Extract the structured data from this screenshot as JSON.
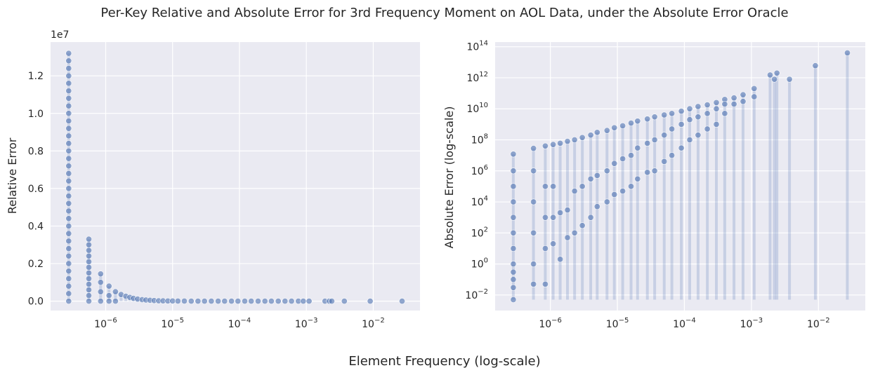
{
  "figure": {
    "suptitle": "Per-Key Relative and Absolute Error for 3rd Frequency Moment on AOL Data, under the Absolute Error Oracle",
    "shared_xlabel": "Element Frequency (log-scale)"
  },
  "colors": {
    "panel_bg": "#eaeaf2",
    "grid": "#ffffff",
    "point": "#4c72b0",
    "text": "#262626"
  },
  "chart_data": [
    {
      "type": "scatter",
      "title": "",
      "xlabel": "",
      "ylabel": "Relative Error",
      "y_offset_label": "1e7",
      "xscale": "log",
      "yscale": "linear",
      "xlim": [
        1.5e-07,
        0.05
      ],
      "ylim": [
        -500000,
        13800000
      ],
      "x_ticks": [
        1e-06,
        1e-05,
        0.0001,
        0.001,
        0.01
      ],
      "x_tick_labels": [
        {
          "base": "10",
          "exp": "−6"
        },
        {
          "base": "10",
          "exp": "−5"
        },
        {
          "base": "10",
          "exp": "−4"
        },
        {
          "base": "10",
          "exp": "−3"
        },
        {
          "base": "10",
          "exp": "−2"
        }
      ],
      "y_ticks": [
        0,
        2000000,
        4000000,
        6000000,
        8000000,
        10000000,
        12000000
      ],
      "y_tick_labels": [
        "0.0",
        "0.2",
        "0.4",
        "0.6",
        "0.8",
        "1.0",
        "1.2"
      ],
      "grid": true,
      "points": [
        [
          2.8e-07,
          13200000
        ],
        [
          2.8e-07,
          12800000
        ],
        [
          2.8e-07,
          12400000
        ],
        [
          2.8e-07,
          12000000
        ],
        [
          2.8e-07,
          11600000
        ],
        [
          2.8e-07,
          11200000
        ],
        [
          2.8e-07,
          10800000
        ],
        [
          2.8e-07,
          10400000
        ],
        [
          2.8e-07,
          10000000
        ],
        [
          2.8e-07,
          9600000
        ],
        [
          2.8e-07,
          9200000
        ],
        [
          2.8e-07,
          8800000
        ],
        [
          2.8e-07,
          8400000
        ],
        [
          2.8e-07,
          8000000
        ],
        [
          2.8e-07,
          7600000
        ],
        [
          2.8e-07,
          7200000
        ],
        [
          2.8e-07,
          6800000
        ],
        [
          2.8e-07,
          6400000
        ],
        [
          2.8e-07,
          6000000
        ],
        [
          2.8e-07,
          5600000
        ],
        [
          2.8e-07,
          5200000
        ],
        [
          2.8e-07,
          4800000
        ],
        [
          2.8e-07,
          4400000
        ],
        [
          2.8e-07,
          4000000
        ],
        [
          2.8e-07,
          3600000
        ],
        [
          2.8e-07,
          3200000
        ],
        [
          2.8e-07,
          2800000
        ],
        [
          2.8e-07,
          2400000
        ],
        [
          2.8e-07,
          2000000
        ],
        [
          2.8e-07,
          1600000
        ],
        [
          2.8e-07,
          1200000
        ],
        [
          2.8e-07,
          800000
        ],
        [
          2.8e-07,
          400000
        ],
        [
          2.8e-07,
          0
        ],
        [
          5.6e-07,
          3300000
        ],
        [
          5.6e-07,
          3000000
        ],
        [
          5.6e-07,
          2700000
        ],
        [
          5.6e-07,
          2400000
        ],
        [
          5.6e-07,
          2100000
        ],
        [
          5.6e-07,
          1800000
        ],
        [
          5.6e-07,
          1500000
        ],
        [
          5.6e-07,
          1200000
        ],
        [
          5.6e-07,
          900000
        ],
        [
          5.6e-07,
          600000
        ],
        [
          5.6e-07,
          300000
        ],
        [
          5.6e-07,
          0
        ],
        [
          8.4e-07,
          1450000
        ],
        [
          8.4e-07,
          1000000
        ],
        [
          8.4e-07,
          500000
        ],
        [
          8.4e-07,
          0
        ],
        [
          1.12e-06,
          800000
        ],
        [
          1.12e-06,
          300000
        ],
        [
          1.12e-06,
          0
        ],
        [
          1.4e-06,
          500000
        ],
        [
          1.4e-06,
          0
        ],
        [
          1.7e-06,
          350000
        ],
        [
          2e-06,
          260000
        ],
        [
          2.3e-06,
          200000
        ],
        [
          2.6e-06,
          150000
        ],
        [
          3e-06,
          110000
        ],
        [
          3.5e-06,
          80000
        ],
        [
          4e-06,
          60000
        ],
        [
          4.6e-06,
          45000
        ],
        [
          5.3e-06,
          30000
        ],
        [
          6.2e-06,
          20000
        ],
        [
          7.2e-06,
          14000
        ],
        [
          8.5e-06,
          9000
        ],
        [
          1e-05,
          6000
        ],
        [
          1.2e-05,
          4000
        ],
        [
          1.5e-05,
          2500
        ],
        [
          1.9e-05,
          1600
        ],
        [
          2.4e-05,
          1000
        ],
        [
          3e-05,
          700
        ],
        [
          3.8e-05,
          500
        ],
        [
          4.8e-05,
          300
        ],
        [
          6e-05,
          200
        ],
        [
          7.6e-05,
          150
        ],
        [
          9.5e-05,
          100
        ],
        [
          0.00012,
          80
        ],
        [
          0.00015,
          60
        ],
        [
          0.00019,
          50
        ],
        [
          0.00024,
          40
        ],
        [
          0.0003,
          30
        ],
        [
          0.00038,
          20
        ],
        [
          0.00048,
          15
        ],
        [
          0.0006,
          10
        ],
        [
          0.00076,
          8
        ],
        [
          0.0009,
          6
        ],
        [
          0.0011,
          5
        ],
        [
          0.0019,
          3
        ],
        [
          0.0022,
          2
        ],
        [
          0.0024,
          2
        ],
        [
          0.0037,
          1
        ],
        [
          0.009,
          1
        ],
        [
          0.027,
          0
        ]
      ]
    },
    {
      "type": "scatter",
      "title": "",
      "xlabel": "",
      "ylabel": "Absolute Error (log-scale)",
      "xscale": "log",
      "yscale": "log",
      "xlim": [
        1.5e-07,
        0.05
      ],
      "ylim": [
        0.001,
        200000000000000.0
      ],
      "x_ticks": [
        1e-06,
        1e-05,
        0.0001,
        0.001,
        0.01
      ],
      "x_tick_labels": [
        {
          "base": "10",
          "exp": "−6"
        },
        {
          "base": "10",
          "exp": "−5"
        },
        {
          "base": "10",
          "exp": "−4"
        },
        {
          "base": "10",
          "exp": "−3"
        },
        {
          "base": "10",
          "exp": "−2"
        }
      ],
      "y_ticks": [
        0.01,
        1,
        100,
        10000,
        1000000,
        100000000,
        10000000000,
        1000000000000,
        100000000000000
      ],
      "y_tick_labels": [
        {
          "base": "10",
          "exp": "−2"
        },
        {
          "base": "10",
          "exp": "0"
        },
        {
          "base": "10",
          "exp": "2"
        },
        {
          "base": "10",
          "exp": "4"
        },
        {
          "base": "10",
          "exp": "6"
        },
        {
          "base": "10",
          "exp": "8"
        },
        {
          "base": "10",
          "exp": "10"
        },
        {
          "base": "10",
          "exp": "12"
        },
        {
          "base": "10",
          "exp": "14"
        }
      ],
      "grid": true,
      "points": [
        [
          2.8e-07,
          12000000.0
        ],
        [
          2.8e-07,
          1000000.0
        ],
        [
          2.8e-07,
          100000.0
        ],
        [
          2.8e-07,
          10000.0
        ],
        [
          2.8e-07,
          1000.0
        ],
        [
          2.8e-07,
          100.0
        ],
        [
          2.8e-07,
          10
        ],
        [
          2.8e-07,
          1
        ],
        [
          2.8e-07,
          0.3
        ],
        [
          2.8e-07,
          0.1
        ],
        [
          2.8e-07,
          0.03
        ],
        [
          2.8e-07,
          0.005
        ],
        [
          5.6e-07,
          28000000.0
        ],
        [
          5.6e-07,
          1000000.0
        ],
        [
          5.6e-07,
          10000.0
        ],
        [
          5.6e-07,
          100.0
        ],
        [
          5.6e-07,
          1
        ],
        [
          5.6e-07,
          0.05
        ],
        [
          8.4e-07,
          40000000.0
        ],
        [
          8.4e-07,
          100000.0
        ],
        [
          8.4e-07,
          1000.0
        ],
        [
          8.4e-07,
          10
        ],
        [
          8.4e-07,
          0.05
        ],
        [
          1.1e-06,
          50000000.0
        ],
        [
          1.1e-06,
          100000.0
        ],
        [
          1.1e-06,
          1000.0
        ],
        [
          1.1e-06,
          20
        ],
        [
          1.4e-06,
          60000000.0
        ],
        [
          1.4e-06,
          2000.0
        ],
        [
          1.4e-06,
          2
        ],
        [
          1.8e-06,
          80000000.0
        ],
        [
          1.8e-06,
          3000.0
        ],
        [
          1.8e-06,
          50
        ],
        [
          2.3e-06,
          100000000.0
        ],
        [
          2.3e-06,
          50000.0
        ],
        [
          2.3e-06,
          100
        ],
        [
          3e-06,
          140000000.0
        ],
        [
          3e-06,
          100000.0
        ],
        [
          3e-06,
          300
        ],
        [
          4e-06,
          200000000.0
        ],
        [
          4e-06,
          300000.0
        ],
        [
          4e-06,
          1000.0
        ],
        [
          5e-06,
          300000000.0
        ],
        [
          5e-06,
          500000.0
        ],
        [
          5e-06,
          5000.0
        ],
        [
          7e-06,
          400000000.0
        ],
        [
          7e-06,
          1000000.0
        ],
        [
          7e-06,
          10000.0
        ],
        [
          9e-06,
          600000000.0
        ],
        [
          9e-06,
          3000000.0
        ],
        [
          9e-06,
          30000.0
        ],
        [
          1.2e-05,
          800000000.0
        ],
        [
          1.2e-05,
          6000000.0
        ],
        [
          1.2e-05,
          50000.0
        ],
        [
          1.6e-05,
          1200000000.0
        ],
        [
          1.6e-05,
          10000000.0
        ],
        [
          1.6e-05,
          100000.0
        ],
        [
          2e-05,
          1600000000.0
        ],
        [
          2e-05,
          30000000.0
        ],
        [
          2e-05,
          300000.0
        ],
        [
          2.8e-05,
          2200000000.0
        ],
        [
          2.8e-05,
          60000000.0
        ],
        [
          2.8e-05,
          800000.0
        ],
        [
          3.6e-05,
          3000000000.0
        ],
        [
          3.6e-05,
          100000000.0
        ],
        [
          3.6e-05,
          1000000.0
        ],
        [
          5e-05,
          4000000000.0
        ],
        [
          5e-05,
          200000000.0
        ],
        [
          5e-05,
          4000000.0
        ],
        [
          6.5e-05,
          5000000000.0
        ],
        [
          6.5e-05,
          500000000.0
        ],
        [
          6.5e-05,
          10000000.0
        ],
        [
          9e-05,
          7000000000.0
        ],
        [
          9e-05,
          1000000000.0
        ],
        [
          9e-05,
          30000000.0
        ],
        [
          0.00012,
          10000000000.0
        ],
        [
          0.00012,
          2000000000.0
        ],
        [
          0.00012,
          100000000.0
        ],
        [
          0.00016,
          14000000000.0
        ],
        [
          0.00016,
          3000000000.0
        ],
        [
          0.00016,
          200000000.0
        ],
        [
          0.00022,
          18000000000.0
        ],
        [
          0.00022,
          5000000000.0
        ],
        [
          0.00022,
          500000000.0
        ],
        [
          0.0003,
          25000000000.0
        ],
        [
          0.0003,
          10000000000.0
        ],
        [
          0.0003,
          1000000000.0
        ],
        [
          0.0004,
          40000000000.0
        ],
        [
          0.0004,
          20000000000.0
        ],
        [
          0.0004,
          5000000000.0
        ],
        [
          0.00055,
          50000000000.0
        ],
        [
          0.00055,
          20000000000.0
        ],
        [
          0.00075,
          80000000000.0
        ],
        [
          0.00075,
          30000000000.0
        ],
        [
          0.0011,
          200000000000.0
        ],
        [
          0.0011,
          60000000000.0
        ],
        [
          0.0019,
          1500000000000.0
        ],
        [
          0.0022,
          800000000000.0
        ],
        [
          0.0024,
          2000000000000.0
        ],
        [
          0.0037,
          800000000000.0
        ],
        [
          0.009,
          6000000000000.0
        ],
        [
          0.027,
          40000000000000.0
        ]
      ]
    }
  ]
}
